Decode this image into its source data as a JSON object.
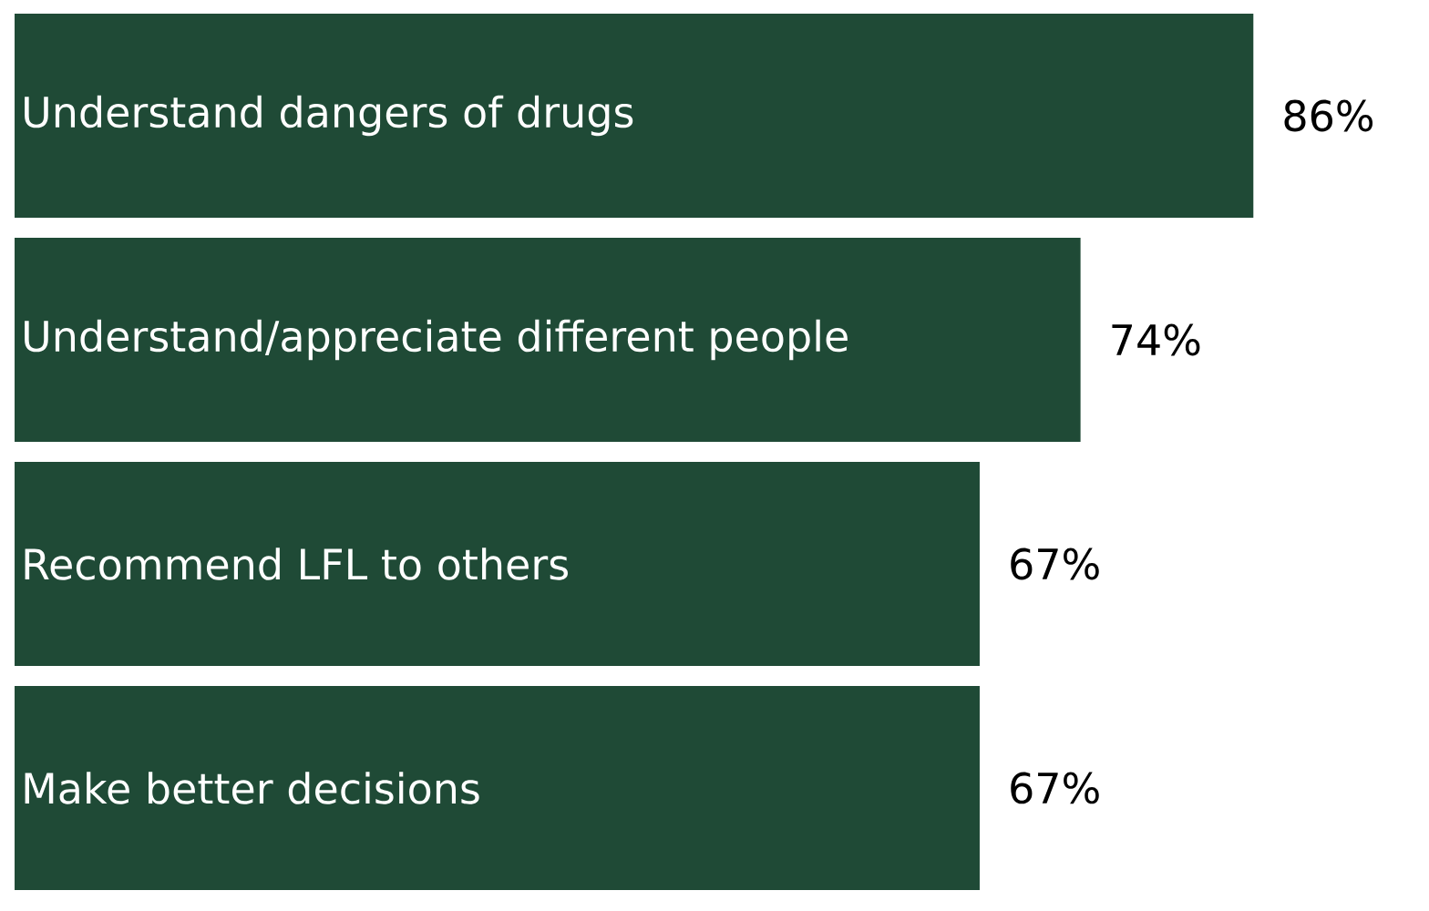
{
  "chart_data": {
    "type": "bar",
    "orientation": "horizontal",
    "categories": [
      "Understand dangers of drugs",
      "Understand/appreciate different people",
      "Recommend LFL to others",
      "Make better decisions"
    ],
    "values": [
      86,
      74,
      67,
      67
    ],
    "value_labels": [
      "86%",
      "74%",
      "67%",
      "67%"
    ],
    "color": "#1f4a36"
  }
}
